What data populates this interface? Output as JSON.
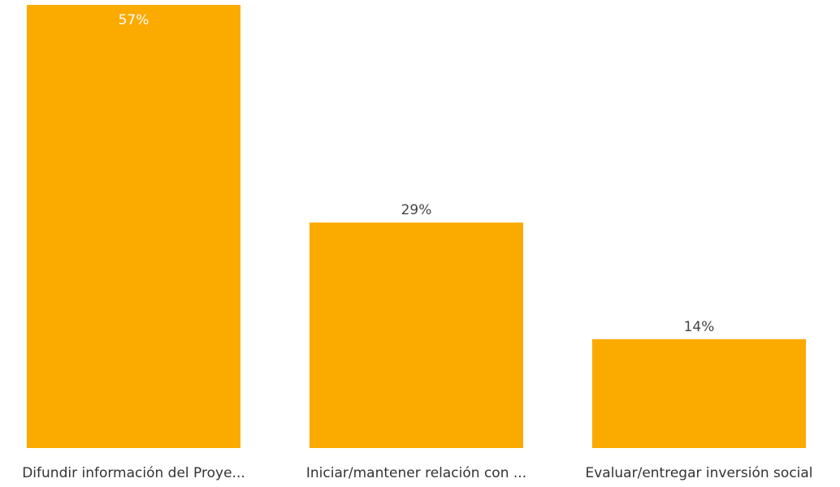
{
  "chart_data": {
    "type": "bar",
    "categories": [
      "Difundir información del Proye...",
      "Iniciar/mantener relación con ...",
      "Evaluar/entregar inversión social"
    ],
    "values": [
      57,
      29,
      14
    ],
    "data_labels": [
      "57%",
      "29%",
      "14%"
    ],
    "ylim": [
      0,
      57
    ],
    "bar_color": "#FBAA00",
    "label_color_inside": "#ffffff",
    "label_color_outside": "#444444",
    "category_label_color": "#333333",
    "grid": false,
    "legend": "none"
  }
}
